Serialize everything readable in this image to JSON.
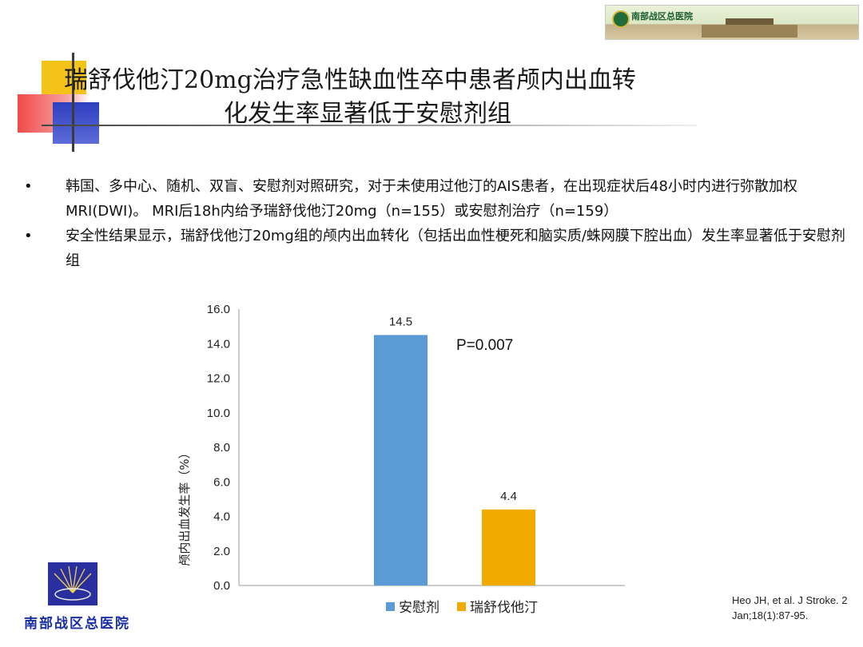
{
  "header": {
    "logo_text": "南部战区总医院"
  },
  "title": {
    "line1": "瑞舒伐他汀20mg治疗急性缺血性卒中患者颅内出血转",
    "line2": "化发生率显著低于安慰剂组"
  },
  "bullets": [
    {
      "text": "韩国、多中心、随机、双盲、安慰剂对照研究，对于未使用过他汀的AIS患者，在出现症状后48小时内进行弥散加权MRI(DWI)。 MRI后18h内给予瑞舒伐他汀20mg（n=155）或安慰剂治疗（n=159）"
    },
    {
      "text": "安全性结果显示，瑞舒伐他汀20mg组的颅内出血转化（包括出血性梗死和脑实质/蛛网膜下腔出血）发生率显著低于安慰剂组"
    }
  ],
  "bullet_symbol": "•",
  "chart_data": {
    "type": "bar",
    "categories": [
      "安慰剂",
      "瑞舒伐他汀"
    ],
    "values": [
      14.5,
      4.4
    ],
    "data_labels": [
      "14.5",
      "4.4"
    ],
    "colors": [
      "#5b9bd5",
      "#f0aa00"
    ],
    "ylabel": "颅内出血发生率（%）",
    "ylim": [
      0,
      16
    ],
    "yticks": [
      "0.0",
      "2.0",
      "4.0",
      "6.0",
      "8.0",
      "10.0",
      "12.0",
      "14.0",
      "16.0"
    ],
    "annotation": "P=0.007",
    "legend": [
      {
        "name": "安慰剂",
        "color": "#5b9bd5"
      },
      {
        "name": "瑞舒伐他汀",
        "color": "#f0aa00"
      }
    ],
    "legend_position": "bottom",
    "grid": false
  },
  "footer": {
    "logo_text": "南部战区总医院",
    "citation_line1": "Heo JH, et al. J Stroke. 2",
    "citation_line2": "Jan;18(1):87-95."
  }
}
